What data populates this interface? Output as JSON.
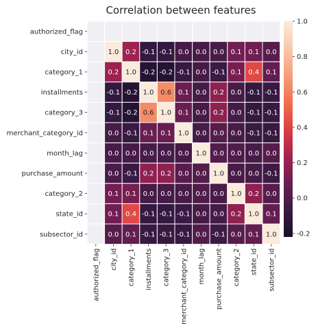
{
  "chart_data": {
    "type": "heatmap",
    "title": "Correlation between features",
    "rows": [
      "authorized_flag",
      "city_id",
      "category_1",
      "installments",
      "category_3",
      "merchant_category_id",
      "month_lag",
      "purchase_amount",
      "category_2",
      "state_id",
      "subsector_id"
    ],
    "columns": [
      "authorized_flag",
      "city_id",
      "category_1",
      "installments",
      "category_3",
      "merchant_category_id",
      "month_lag",
      "purchase_amount",
      "category_2",
      "state_id",
      "subsector_id"
    ],
    "values": [
      [
        null,
        null,
        null,
        null,
        null,
        null,
        null,
        null,
        null,
        null,
        null
      ],
      [
        null,
        1.0,
        0.2,
        -0.1,
        -0.1,
        -0.0,
        -0.0,
        -0.0,
        0.1,
        0.1,
        0.0
      ],
      [
        null,
        0.2,
        1.0,
        -0.2,
        -0.2,
        -0.1,
        -0.0,
        -0.1,
        0.1,
        0.4,
        0.1
      ],
      [
        null,
        -0.1,
        -0.2,
        1.0,
        0.6,
        0.1,
        -0.0,
        0.2,
        -0.0,
        -0.1,
        -0.1
      ],
      [
        null,
        -0.1,
        -0.2,
        0.6,
        1.0,
        0.1,
        -0.0,
        0.2,
        -0.0,
        -0.1,
        -0.1
      ],
      [
        null,
        -0.0,
        -0.1,
        0.1,
        0.1,
        1.0,
        -0.0,
        0.0,
        -0.0,
        -0.1,
        -0.1
      ],
      [
        null,
        -0.0,
        -0.0,
        -0.0,
        -0.0,
        -0.0,
        1.0,
        0.0,
        0.0,
        -0.0,
        0.0
      ],
      [
        null,
        -0.0,
        -0.1,
        0.2,
        0.2,
        0.0,
        0.0,
        1.0,
        -0.0,
        -0.0,
        -0.1
      ],
      [
        null,
        0.1,
        0.1,
        -0.0,
        -0.0,
        -0.0,
        0.0,
        -0.0,
        1.0,
        0.2,
        0.0
      ],
      [
        null,
        0.1,
        0.4,
        -0.1,
        -0.1,
        -0.1,
        -0.0,
        -0.0,
        0.2,
        1.0,
        0.1
      ],
      [
        null,
        0.0,
        0.1,
        -0.1,
        -0.1,
        -0.1,
        0.0,
        -0.1,
        0.0,
        0.1,
        1.0
      ]
    ],
    "true_values": [
      [
        null,
        null,
        null,
        null,
        null,
        null,
        null,
        null,
        null,
        null,
        null
      ],
      [
        null,
        1.0,
        0.22,
        -0.1,
        -0.1,
        -0.03,
        -0.03,
        -0.02,
        0.1,
        0.1,
        0.02
      ],
      [
        null,
        0.22,
        1.0,
        -0.17,
        -0.17,
        -0.08,
        -0.03,
        -0.07,
        0.12,
        0.42,
        0.06
      ],
      [
        null,
        -0.1,
        -0.17,
        1.0,
        0.63,
        0.08,
        -0.03,
        0.18,
        -0.03,
        -0.1,
        -0.08
      ],
      [
        null,
        -0.1,
        -0.17,
        0.63,
        1.0,
        0.08,
        -0.03,
        0.18,
        -0.03,
        -0.1,
        -0.08
      ],
      [
        null,
        -0.03,
        -0.08,
        0.08,
        0.08,
        1.0,
        -0.03,
        0.02,
        -0.03,
        -0.07,
        -0.08
      ],
      [
        null,
        -0.03,
        -0.03,
        -0.03,
        -0.03,
        -0.03,
        1.0,
        0.01,
        0.0,
        -0.03,
        0.01
      ],
      [
        null,
        -0.02,
        -0.07,
        0.18,
        0.18,
        0.02,
        0.01,
        1.0,
        -0.02,
        -0.03,
        -0.06
      ],
      [
        null,
        0.1,
        0.12,
        -0.03,
        -0.03,
        -0.03,
        0.0,
        -0.02,
        1.0,
        0.18,
        0.02
      ],
      [
        null,
        0.1,
        0.42,
        -0.1,
        -0.1,
        -0.07,
        -0.03,
        -0.03,
        0.18,
        1.0,
        0.06
      ],
      [
        null,
        0.02,
        0.06,
        -0.08,
        -0.08,
        -0.08,
        0.01,
        -0.06,
        0.02,
        0.06,
        1.0
      ]
    ],
    "nan_color": "#f0f0f4",
    "colormap": "rocket",
    "colorbar": {
      "min": -0.22,
      "max": 1.0,
      "ticks": [
        -0.2,
        0.0,
        0.2,
        0.4,
        0.6,
        0.8,
        1.0
      ]
    },
    "colors": [
      "#1a0f2b",
      "#3a1a44",
      "#6b1e52",
      "#a3234f",
      "#dc3f43",
      "#f0714e",
      "#f5a07a",
      "#f9c8ad",
      "#faebdd"
    ]
  }
}
